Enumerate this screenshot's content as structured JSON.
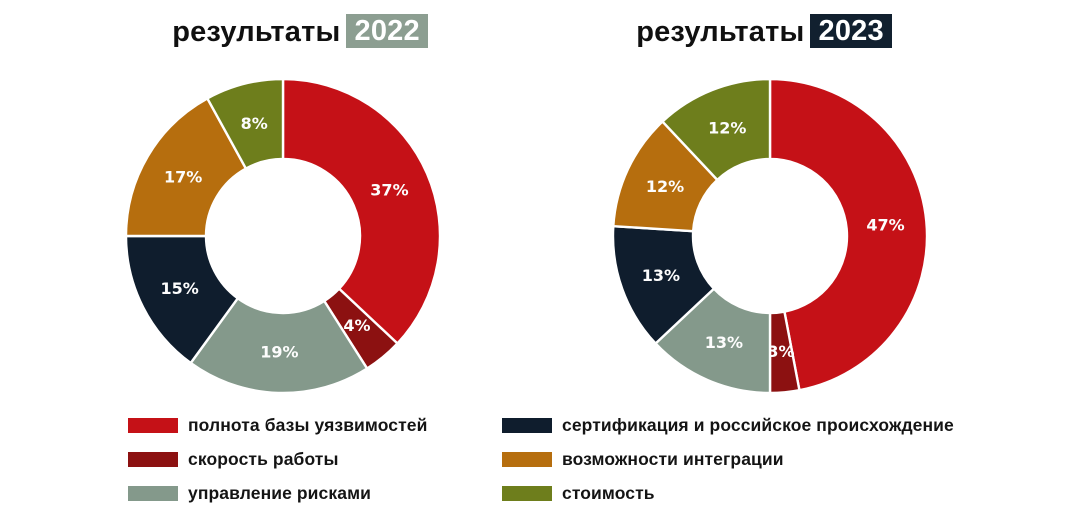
{
  "chart_data": [
    {
      "type": "pie",
      "subtype": "donut",
      "title": "результаты 2022",
      "title_text": "результаты",
      "year": "2022",
      "year_badge_color": "#8C9E91",
      "categories": [
        "полнота базы уязвимостей",
        "скорость работы",
        "управление рисками",
        "сертификация и российское происхождение",
        "возможности интеграции",
        "стоимость"
      ],
      "values": [
        37,
        4,
        19,
        15,
        17,
        8
      ],
      "labels": [
        "37%",
        "4%",
        "19%",
        "15%",
        "17%",
        "8%"
      ],
      "unit": "%",
      "colors": [
        "#C51117",
        "#8C1111",
        "#84998B",
        "#0F1D2D",
        "#B66E0E",
        "#6E7E1C"
      ],
      "start_angle_deg": 0,
      "direction": "clockwise",
      "legend_position": "bottom"
    },
    {
      "type": "pie",
      "subtype": "donut",
      "title": "результаты 2023",
      "title_text": "результаты",
      "year": "2023",
      "year_badge_color": "#11202F",
      "categories": [
        "полнота базы уязвимостей",
        "скорость работы",
        "управление рисками",
        "сертификация и российское происхождение",
        "возможности интеграции",
        "стоимость"
      ],
      "values": [
        47,
        3,
        13,
        13,
        12,
        12
      ],
      "labels": [
        "47%",
        "3%",
        "13%",
        "13%",
        "12%",
        "12%"
      ],
      "unit": "%",
      "colors": [
        "#C51117",
        "#8C1111",
        "#84998B",
        "#0F1D2D",
        "#B66E0E",
        "#6E7E1C"
      ],
      "start_angle_deg": 0,
      "direction": "clockwise",
      "legend_position": "bottom"
    }
  ],
  "legend": {
    "columns": [
      [
        {
          "label": "полнота базы уязвимостей",
          "color": "#C51117"
        },
        {
          "label": "скорость работы",
          "color": "#8C1111"
        },
        {
          "label": "управление рисками",
          "color": "#84998B"
        }
      ],
      [
        {
          "label": "сертификация и российское происхождение",
          "color": "#0F1D2D"
        },
        {
          "label": "возможности интеграции",
          "color": "#B66E0E"
        },
        {
          "label": "стоимость",
          "color": "#6E7E1C"
        }
      ]
    ]
  },
  "style": {
    "slice_separator_color": "#FFFFFF",
    "percent_label_color": "#FDFDFD",
    "title_color": "#101010",
    "background": "#FFFFFF"
  }
}
